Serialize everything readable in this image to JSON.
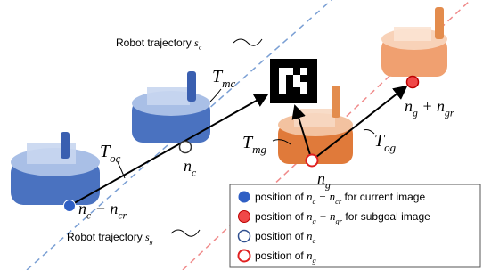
{
  "labels": [
    {
      "parts": [
        {
          "t": "Robot trajectory "
        },
        {
          "t": "s",
          "s": "c"
        }
      ]
    },
    {
      "parts": [
        {
          "t": "T",
          "s": "mc"
        }
      ]
    },
    {
      "parts": [
        {
          "t": "T",
          "s": "oc"
        }
      ]
    },
    {
      "parts": [
        {
          "t": "n",
          "s": "c"
        }
      ]
    },
    {
      "parts": [
        {
          "t": "n",
          "s": "c"
        },
        {
          "t": " − "
        },
        {
          "t": "n",
          "s": "cr"
        }
      ]
    },
    {
      "parts": [
        {
          "t": "T",
          "s": "mg"
        }
      ]
    },
    {
      "parts": [
        {
          "t": "T",
          "s": "og"
        }
      ]
    },
    {
      "parts": [
        {
          "t": "n",
          "s": "g"
        }
      ]
    },
    {
      "parts": [
        {
          "t": "n",
          "s": "g"
        },
        {
          "t": " + "
        },
        {
          "t": "n",
          "s": "gr"
        }
      ]
    },
    {
      "parts": [
        {
          "t": "Robot trajectory "
        },
        {
          "t": "s",
          "s": "g"
        }
      ]
    }
  ],
  "legend": [
    {
      "parts": [
        {
          "t": "position of "
        },
        {
          "t": "n",
          "s": "c"
        },
        {
          "t": " − "
        },
        {
          "t": "n",
          "s": "cr"
        },
        {
          "t": " for current image"
        }
      ]
    },
    {
      "parts": [
        {
          "t": "position of "
        },
        {
          "t": "n",
          "s": "g"
        },
        {
          "t": " + "
        },
        {
          "t": "n",
          "s": "gr"
        },
        {
          "t": " for subgoal image"
        }
      ]
    },
    {
      "parts": [
        {
          "t": "position of "
        },
        {
          "t": "n",
          "s": "c"
        }
      ]
    },
    {
      "parts": [
        {
          "t": "position of "
        },
        {
          "t": "n",
          "s": "g"
        }
      ]
    }
  ]
}
